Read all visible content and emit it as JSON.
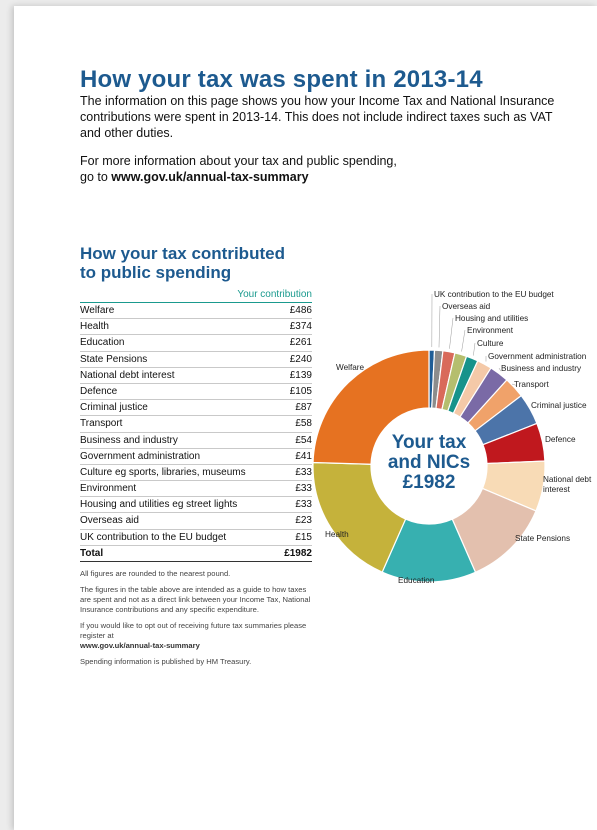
{
  "page": {
    "title": "How your tax was spent in 2013-14",
    "intro": "The information on this page shows you how your Income Tax and National Insurance contributions were spent in 2013-14. This does not include indirect taxes such as VAT and other duties.",
    "more_prefix": "For more information about your tax and public spending,",
    "more_go": "go to ",
    "more_link": "www.gov.uk/annual-tax-summary"
  },
  "table": {
    "heading_line1": "How your tax contributed",
    "heading_line2": "to public spending",
    "column_header": "Your contribution",
    "rows": [
      {
        "label": "Welfare",
        "value": "£486"
      },
      {
        "label": "Health",
        "value": "£374"
      },
      {
        "label": "Education",
        "value": "£261"
      },
      {
        "label": "State Pensions",
        "value": "£240"
      },
      {
        "label": "National debt interest",
        "value": "£139"
      },
      {
        "label": "Defence",
        "value": "£105"
      },
      {
        "label": "Criminal justice",
        "value": "£87"
      },
      {
        "label": "Transport",
        "value": "£58"
      },
      {
        "label": "Business and industry",
        "value": "£54"
      },
      {
        "label": "Government administration",
        "value": "£41"
      },
      {
        "label": "Culture eg sports, libraries, museums",
        "value": "£33"
      },
      {
        "label": "Environment",
        "value": "£33"
      },
      {
        "label": "Housing and utilities eg street lights",
        "value": "£33"
      },
      {
        "label": "Overseas aid",
        "value": "£23"
      },
      {
        "label": "UK contribution to the EU budget",
        "value": "£15"
      }
    ],
    "total_label": "Total",
    "total_value": "£1982"
  },
  "notes": {
    "rounding": "All figures are rounded to the nearest pound.",
    "guide": "The figures in the table above are intended as a guide to how taxes are spent and not as a direct link between your Income Tax, National Insurance contributions and any specific expenditure.",
    "optout": "If you would like to opt out of receiving future tax summaries please register at",
    "optout_link": "www.gov.uk/annual-tax-summary",
    "treasury": "Spending information is published by HM Treasury."
  },
  "chart_data": {
    "type": "pie",
    "center_line1": "Your tax",
    "center_line2": "and NICs",
    "center_line3": "£1982",
    "slices": [
      {
        "label": "UK contribution to the EU budget",
        "value": 15,
        "color": "#1f5d96"
      },
      {
        "label": "Overseas aid",
        "value": 23,
        "color": "#8c8c8c"
      },
      {
        "label": "Housing and utilities",
        "value": 33,
        "color": "#d96a5a"
      },
      {
        "label": "Environment",
        "value": 33,
        "color": "#b5be6e"
      },
      {
        "label": "Culture",
        "value": 33,
        "color": "#17938b"
      },
      {
        "label": "Government administration",
        "value": 41,
        "color": "#f4c9a8"
      },
      {
        "label": "Business and industry",
        "value": 54,
        "color": "#7a6aa6"
      },
      {
        "label": "Transport",
        "value": 58,
        "color": "#f0a26a"
      },
      {
        "label": "Criminal justice",
        "value": 87,
        "color": "#4c74a9"
      },
      {
        "label": "Defence",
        "value": 105,
        "color": "#c0181e"
      },
      {
        "label": "National debt interest",
        "value": 139,
        "color": "#f8dbb6"
      },
      {
        "label": "State Pensions",
        "value": 240,
        "color": "#e3c0ae"
      },
      {
        "label": "Education",
        "value": 261,
        "color": "#37b0b0"
      },
      {
        "label": "Health",
        "value": 374,
        "color": "#c5b23b"
      },
      {
        "label": "Welfare",
        "value": 486,
        "color": "#e67221"
      }
    ]
  }
}
